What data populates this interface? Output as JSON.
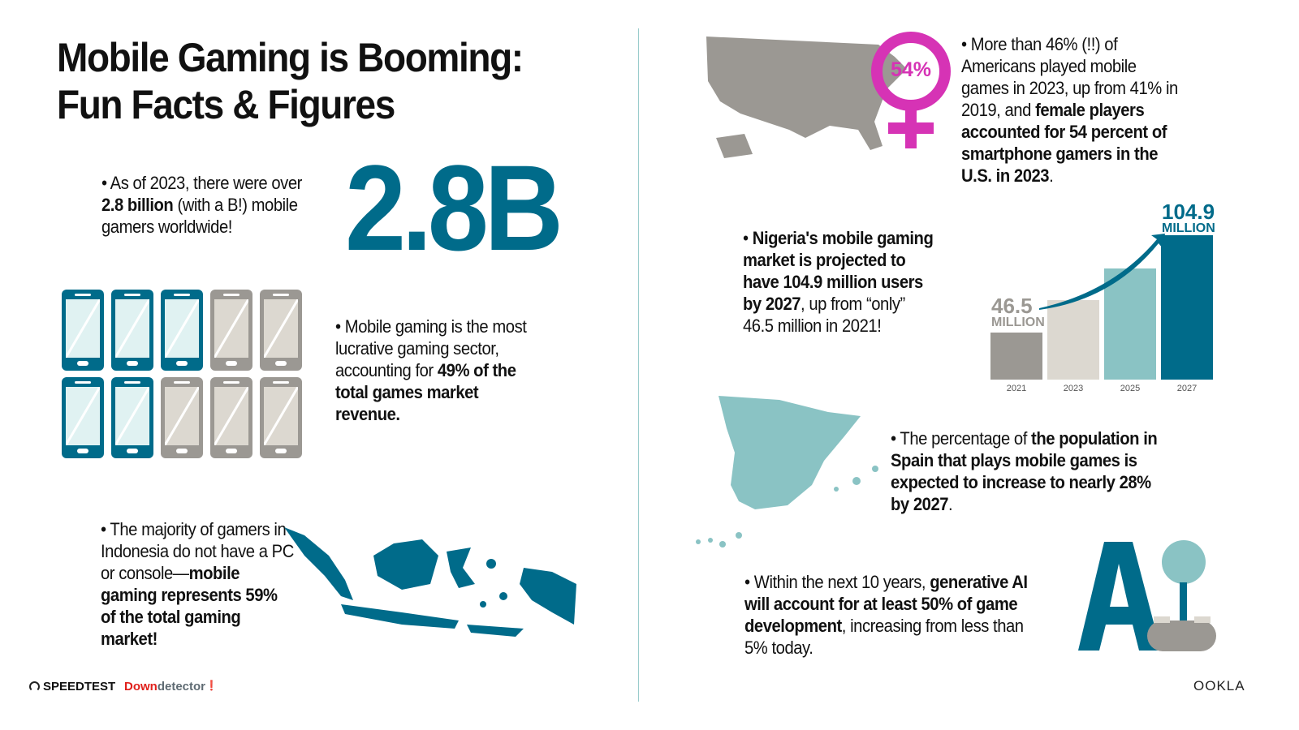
{
  "title_line1": "Mobile Gaming is Booming:",
  "title_line2": "Fun Facts & Figures",
  "gamers": {
    "pre": "As of 2023, there were over ",
    "bold": "2.8 billion",
    "post": " (with a B!) mobile gamers worldwide!",
    "big": "2.8B"
  },
  "revenue": {
    "pre": "Mobile gaming is the most lucrative gaming sector, accounting for ",
    "bold": "49% of the total games market revenue.",
    "phones_filled": 5,
    "phones_total": 10
  },
  "indonesia": {
    "pre": "The majority of gamers in Indonesia do not have a PC or console—",
    "bold": "mobile gaming represents 59% of the total gaming market!"
  },
  "usa": {
    "pre": "More than 46% (!!) of Americans played mobile games in 2023, up from 41% in 2019, and ",
    "bold": "female players accounted for 54 percent of smartphone gamers in the U.S. in 2023",
    "post": ".",
    "badge": "54%"
  },
  "nigeria": {
    "bold1": "Nigeria's mobile gaming market is projected to have 104.9 million users by 2027",
    "post": ", up from “only” 46.5 million in 2021!"
  },
  "chart_data": {
    "type": "bar",
    "categories": [
      "2021",
      "2023",
      "2025",
      "2027"
    ],
    "values": [
      46.5,
      66,
      85,
      104.9
    ],
    "labels": [
      {
        "value": "46.5",
        "unit": "MILLION"
      },
      null,
      null,
      {
        "value": "104.9",
        "unit": "MILLION"
      }
    ],
    "colors": [
      "#9b9893",
      "#dcd8d0",
      "#8ac3c4",
      "#006b8a"
    ],
    "annotation": "upward arrow from 2021 to 2027"
  },
  "spain": {
    "pre": "The percentage of ",
    "bold": "the population in Spain that plays mobile games is expected to increase to nearly 28% by 2027",
    "post": "."
  },
  "ai": {
    "pre": "Within the next 10 years, ",
    "bold": "generative AI will account for at least 50% of game development",
    "post": ", increasing from less than 5% today.",
    "logo_text": "AI"
  },
  "footer": {
    "speedtest": "SPEEDTEST",
    "down": "Down",
    "detector": "detector",
    "ookla": "OOKLA"
  },
  "colors": {
    "teal": "#006b8a",
    "light_teal": "#8ac3c4",
    "gray": "#9b9893",
    "magenta": "#d633b5",
    "red": "#e0201b"
  }
}
